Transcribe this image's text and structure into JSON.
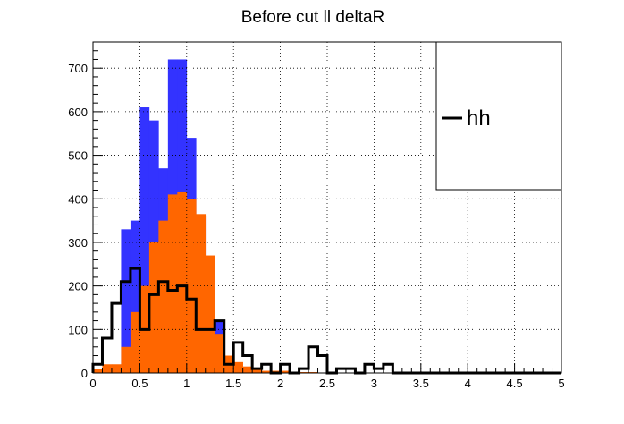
{
  "chart_data": {
    "type": "bar",
    "title": "Before cut ll deltaR",
    "xlabel": "",
    "ylabel": "",
    "xlim": [
      0,
      5
    ],
    "ylim": [
      0,
      760
    ],
    "bin_width": 0.1,
    "grid": true,
    "x_ticks": [
      "0",
      "0.5",
      "1",
      "1.5",
      "2",
      "2.5",
      "3",
      "3.5",
      "4",
      "4.5",
      "5"
    ],
    "y_ticks": [
      "0",
      "100",
      "200",
      "300",
      "400",
      "500",
      "600",
      "700"
    ],
    "x_tick_values": [
      0,
      0.5,
      1,
      1.5,
      2,
      2.5,
      3,
      3.5,
      4,
      4.5,
      5
    ],
    "y_tick_values": [
      0,
      100,
      200,
      300,
      400,
      500,
      600,
      700
    ],
    "legend_position": "top-right",
    "series": [
      {
        "name": "",
        "style": "filled",
        "color": "#3333ff",
        "values": [
          0,
          0,
          10,
          330,
          350,
          610,
          580,
          470,
          720,
          720,
          540,
          360,
          100,
          120,
          20,
          5,
          3,
          2,
          1,
          0,
          0,
          0,
          0,
          0,
          0,
          0,
          0,
          0,
          0,
          0,
          0,
          0,
          0,
          0,
          0,
          0,
          0,
          0,
          0,
          0,
          0,
          0,
          0,
          0,
          0,
          0,
          0,
          0,
          0,
          0
        ]
      },
      {
        "name": "",
        "style": "filled",
        "color": "#ff6600",
        "values": [
          10,
          20,
          20,
          60,
          140,
          200,
          300,
          350,
          410,
          415,
          400,
          365,
          270,
          90,
          40,
          25,
          15,
          10,
          5,
          5,
          5,
          3,
          2,
          2,
          1,
          0,
          0,
          0,
          0,
          0,
          0,
          0,
          0,
          0,
          0,
          0,
          0,
          0,
          0,
          0,
          0,
          0,
          0,
          0,
          0,
          0,
          0,
          0,
          0,
          0
        ]
      },
      {
        "name": "hh",
        "style": "step",
        "color": "#000000",
        "values": [
          20,
          80,
          160,
          210,
          240,
          100,
          180,
          210,
          190,
          200,
          170,
          100,
          100,
          120,
          20,
          70,
          40,
          10,
          20,
          0,
          20,
          0,
          10,
          60,
          40,
          0,
          10,
          10,
          0,
          20,
          10,
          20,
          0,
          0,
          0,
          0,
          0,
          0,
          0,
          0,
          0,
          0,
          0,
          0,
          0,
          0,
          0,
          0,
          0,
          0
        ]
      }
    ]
  }
}
